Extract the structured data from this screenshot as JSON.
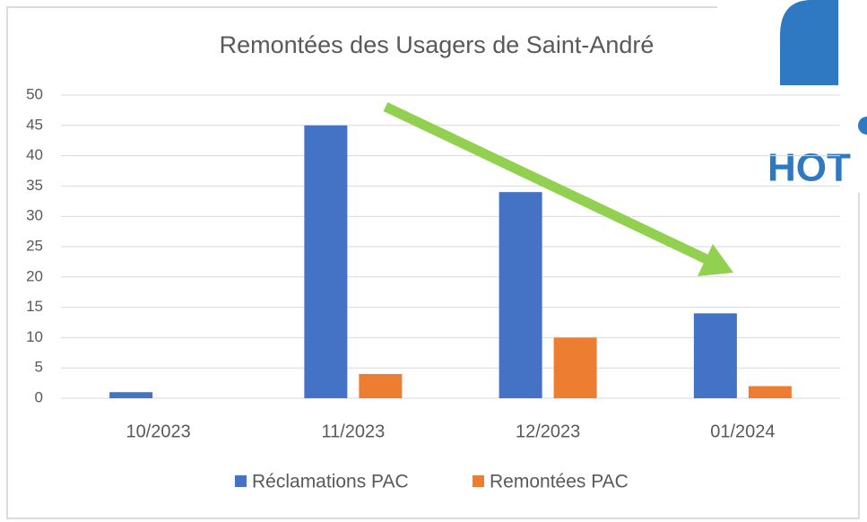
{
  "chart_data": {
    "type": "bar",
    "title": "Remontées des Usagers de Saint-André",
    "categories": [
      "10/2023",
      "11/2023",
      "12/2023",
      "01/2024"
    ],
    "series": [
      {
        "name": "Réclamations PAC",
        "color": "#4472c4",
        "values": [
          1,
          45,
          34,
          14
        ]
      },
      {
        "name": "Remontées PAC",
        "color": "#ed7d31",
        "values": [
          0,
          4,
          10,
          2
        ]
      }
    ],
    "ylim": [
      0,
      50
    ],
    "yticks": [
      0,
      5,
      10,
      15,
      20,
      25,
      30,
      35,
      40,
      45,
      50
    ],
    "grid": true,
    "legend": "bottom"
  },
  "logo_text": "HOT"
}
